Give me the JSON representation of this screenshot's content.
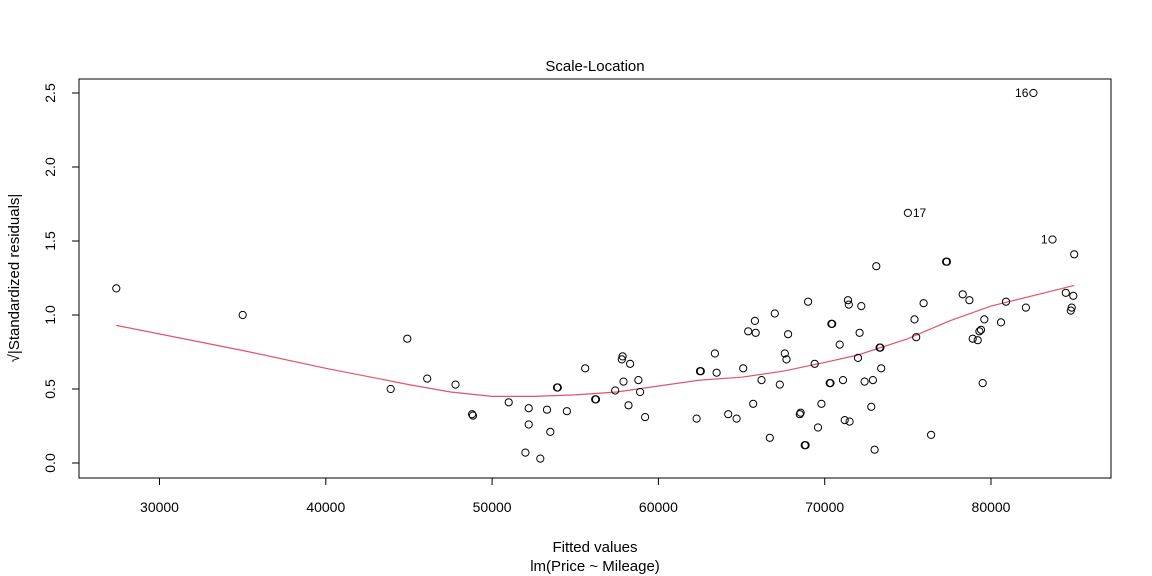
{
  "chart_data": {
    "type": "scatter",
    "title": "Scale-Location",
    "xlabel": "Fitted values",
    "subtitle": "lm(Price ~ Mileage)",
    "ylabel": "√|Standardized residuals|",
    "xlim": [
      25000,
      87500
    ],
    "ylim": [
      -0.1,
      2.6
    ],
    "xticks": [
      "30000",
      "40000",
      "50000",
      "60000",
      "70000",
      "80000"
    ],
    "yticks": [
      "0.0",
      "0.5",
      "1.0",
      "1.5",
      "2.0",
      "2.5"
    ],
    "colors": {
      "points": "#000000",
      "smooth": "#DF536B"
    },
    "points": [
      [
        27400,
        1.18
      ],
      [
        35000,
        1.0
      ],
      [
        43900,
        0.5
      ],
      [
        44900,
        0.84
      ],
      [
        46100,
        0.57
      ],
      [
        47800,
        0.53
      ],
      [
        48800,
        0.33
      ],
      [
        48850,
        0.32
      ],
      [
        51000,
        0.41
      ],
      [
        52000,
        0.07
      ],
      [
        52200,
        0.26
      ],
      [
        52200,
        0.37
      ],
      [
        52900,
        0.03
      ],
      [
        53300,
        0.36
      ],
      [
        53500,
        0.21
      ],
      [
        53900,
        0.51
      ],
      [
        53950,
        0.51
      ],
      [
        54500,
        0.35
      ],
      [
        55600,
        0.64
      ],
      [
        56200,
        0.43
      ],
      [
        56250,
        0.43
      ],
      [
        57400,
        0.49
      ],
      [
        57800,
        0.7
      ],
      [
        57850,
        0.72
      ],
      [
        57900,
        0.55
      ],
      [
        58200,
        0.39
      ],
      [
        58300,
        0.67
      ],
      [
        58800,
        0.56
      ],
      [
        58900,
        0.48
      ],
      [
        59200,
        0.31
      ],
      [
        62300,
        0.3
      ],
      [
        62500,
        0.62
      ],
      [
        62550,
        0.62
      ],
      [
        63400,
        0.74
      ],
      [
        63500,
        0.61
      ],
      [
        64200,
        0.33
      ],
      [
        64700,
        0.3
      ],
      [
        65100,
        0.64
      ],
      [
        65400,
        0.89
      ],
      [
        65700,
        0.4
      ],
      [
        65800,
        0.96
      ],
      [
        65850,
        0.88
      ],
      [
        66200,
        0.56
      ],
      [
        66700,
        0.17
      ],
      [
        67000,
        1.01
      ],
      [
        67300,
        0.53
      ],
      [
        67600,
        0.74
      ],
      [
        67700,
        0.7
      ],
      [
        67800,
        0.87
      ],
      [
        68500,
        0.33
      ],
      [
        68550,
        0.34
      ],
      [
        68800,
        0.12
      ],
      [
        68850,
        0.12
      ],
      [
        69000,
        1.09
      ],
      [
        69400,
        0.67
      ],
      [
        69600,
        0.24
      ],
      [
        69800,
        0.4
      ],
      [
        70300,
        0.54
      ],
      [
        70350,
        0.54
      ],
      [
        70400,
        0.94
      ],
      [
        70450,
        0.94
      ],
      [
        70900,
        0.8
      ],
      [
        71100,
        0.56
      ],
      [
        71200,
        0.29
      ],
      [
        71400,
        1.1
      ],
      [
        71450,
        1.07
      ],
      [
        71500,
        0.28
      ],
      [
        72000,
        0.71
      ],
      [
        72100,
        0.88
      ],
      [
        72200,
        1.06
      ],
      [
        72400,
        0.55
      ],
      [
        72800,
        0.38
      ],
      [
        72900,
        0.56
      ],
      [
        73000,
        0.09
      ],
      [
        73100,
        1.33
      ],
      [
        73300,
        0.78
      ],
      [
        73350,
        0.78
      ],
      [
        73400,
        0.64
      ],
      [
        75000,
        1.69
      ],
      [
        75400,
        0.97
      ],
      [
        75500,
        0.85
      ],
      [
        75950,
        1.08
      ],
      [
        76400,
        0.19
      ],
      [
        77300,
        1.36
      ],
      [
        77350,
        1.36
      ],
      [
        78300,
        1.14
      ],
      [
        78700,
        1.1
      ],
      [
        78900,
        0.84
      ],
      [
        79200,
        0.83
      ],
      [
        79300,
        0.89
      ],
      [
        79400,
        0.9
      ],
      [
        79500,
        0.54
      ],
      [
        79600,
        0.97
      ],
      [
        80600,
        0.95
      ],
      [
        80900,
        1.09
      ],
      [
        82100,
        1.05
      ],
      [
        82550,
        2.5
      ],
      [
        83700,
        1.51
      ],
      [
        84500,
        1.15
      ],
      [
        84800,
        1.03
      ],
      [
        84850,
        1.05
      ],
      [
        84950,
        1.13
      ],
      [
        85000,
        1.41
      ]
    ],
    "point_labels": [
      {
        "text": "16",
        "x": 82550,
        "y": 2.5,
        "side": "left"
      },
      {
        "text": "17",
        "x": 75000,
        "y": 1.69,
        "side": "right"
      },
      {
        "text": "1",
        "x": 83700,
        "y": 1.51,
        "side": "left"
      }
    ],
    "smooth_line": [
      [
        27400,
        0.93
      ],
      [
        35000,
        0.76
      ],
      [
        40000,
        0.64
      ],
      [
        45000,
        0.53
      ],
      [
        47500,
        0.48
      ],
      [
        50000,
        0.45
      ],
      [
        52500,
        0.45
      ],
      [
        55000,
        0.46
      ],
      [
        57500,
        0.48
      ],
      [
        60000,
        0.52
      ],
      [
        62500,
        0.56
      ],
      [
        65000,
        0.58
      ],
      [
        67500,
        0.62
      ],
      [
        70000,
        0.68
      ],
      [
        72000,
        0.73
      ],
      [
        75000,
        0.84
      ],
      [
        77500,
        0.96
      ],
      [
        80000,
        1.06
      ],
      [
        82500,
        1.13
      ],
      [
        85000,
        1.2
      ]
    ]
  }
}
